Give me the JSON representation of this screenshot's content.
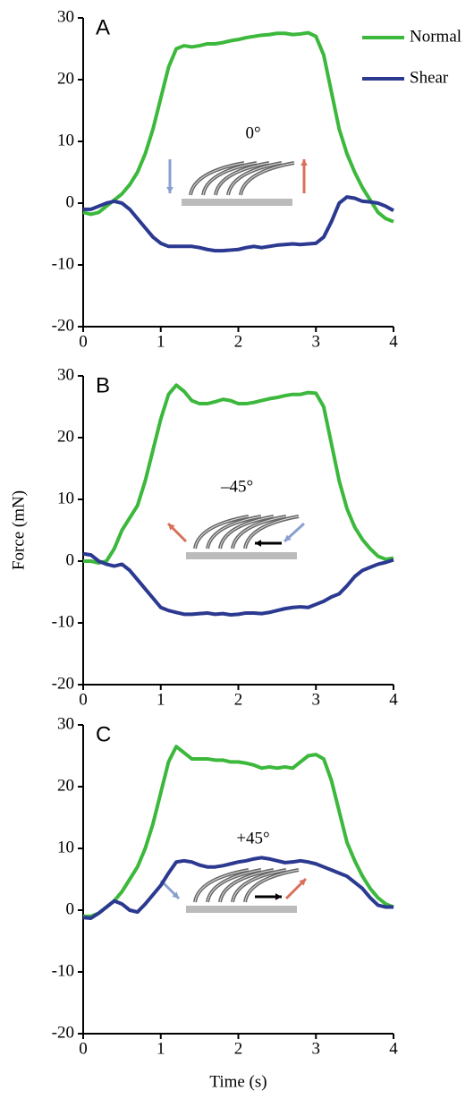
{
  "chart_data": [
    {
      "type": "line",
      "panel": "A",
      "annotation": "0°",
      "legend": "upper right",
      "x": [
        0,
        0.1,
        0.2,
        0.3,
        0.4,
        0.5,
        0.6,
        0.7,
        0.8,
        0.9,
        1.0,
        1.1,
        1.2,
        1.3,
        1.4,
        1.5,
        1.6,
        1.7,
        1.8,
        1.9,
        2.0,
        2.1,
        2.2,
        2.3,
        2.4,
        2.5,
        2.6,
        2.7,
        2.8,
        2.9,
        3.0,
        3.1,
        3.2,
        3.3,
        3.4,
        3.5,
        3.6,
        3.7,
        3.8,
        3.9,
        4.0
      ],
      "series": [
        {
          "name": "Normal",
          "color": "#3cb83c",
          "values": [
            -1.5,
            -1.8,
            -1.5,
            -0.5,
            0.5,
            1.5,
            3,
            5,
            8,
            12,
            17,
            22,
            25,
            25.5,
            25.3,
            25.5,
            25.8,
            25.8,
            26,
            26.3,
            26.5,
            26.8,
            27,
            27.2,
            27.3,
            27.5,
            27.5,
            27.3,
            27.4,
            27.6,
            27,
            24,
            18,
            12,
            8,
            5,
            2.5,
            0.5,
            -1.5,
            -2.5,
            -3
          ]
        },
        {
          "name": "Shear",
          "color": "#2b3990",
          "values": [
            -1,
            -1,
            -0.5,
            0,
            0.3,
            0,
            -1,
            -2.5,
            -4,
            -5.5,
            -6.5,
            -7,
            -7,
            -7,
            -7,
            -7.2,
            -7.5,
            -7.7,
            -7.7,
            -7.6,
            -7.5,
            -7.2,
            -7,
            -7.2,
            -7,
            -6.8,
            -6.7,
            -6.6,
            -6.7,
            -6.6,
            -6.5,
            -5.5,
            -3,
            0,
            1,
            0.8,
            0.3,
            0.2,
            0,
            -0.5,
            -1.2
          ]
        }
      ],
      "xlim": [
        0,
        4
      ],
      "xticks": [
        0,
        1,
        2,
        3,
        4
      ],
      "ylim": [
        -20,
        30
      ],
      "yticks": [
        -20,
        -10,
        0,
        10,
        20,
        30
      ]
    },
    {
      "type": "line",
      "panel": "B",
      "annotation": "–45°",
      "ylabel": "Force (mN)",
      "x": [
        0,
        0.1,
        0.2,
        0.3,
        0.4,
        0.5,
        0.6,
        0.7,
        0.8,
        0.9,
        1.0,
        1.1,
        1.2,
        1.3,
        1.4,
        1.5,
        1.6,
        1.7,
        1.8,
        1.9,
        2.0,
        2.1,
        2.2,
        2.3,
        2.4,
        2.5,
        2.6,
        2.7,
        2.8,
        2.9,
        3.0,
        3.1,
        3.2,
        3.3,
        3.4,
        3.5,
        3.6,
        3.7,
        3.8,
        3.9,
        4.0
      ],
      "series": [
        {
          "name": "Normal",
          "color": "#3cb83c",
          "values": [
            0,
            0,
            -0.3,
            0,
            2,
            5,
            7,
            9,
            13,
            18,
            23,
            27,
            28.5,
            27.5,
            26,
            25.5,
            25.5,
            25.8,
            26.2,
            26,
            25.5,
            25.5,
            25.7,
            26,
            26.3,
            26.5,
            26.8,
            27,
            27,
            27.3,
            27.2,
            25,
            19,
            13,
            8.5,
            5.5,
            3.5,
            2,
            0.8,
            0.3,
            0.5
          ]
        },
        {
          "name": "Shear",
          "color": "#2b3990",
          "values": [
            1.2,
            1,
            0,
            -0.5,
            -0.8,
            -0.5,
            -1.5,
            -3,
            -4.5,
            -6,
            -7.5,
            -8,
            -8.3,
            -8.6,
            -8.6,
            -8.5,
            -8.4,
            -8.6,
            -8.5,
            -8.7,
            -8.6,
            -8.4,
            -8.4,
            -8.5,
            -8.3,
            -8,
            -7.7,
            -7.5,
            -7.4,
            -7.5,
            -7,
            -6.5,
            -5.8,
            -5.3,
            -4,
            -2.5,
            -1.5,
            -1,
            -0.5,
            -0.2,
            0.2
          ]
        }
      ],
      "xlim": [
        0,
        4
      ],
      "xticks": [
        0,
        1,
        2,
        3,
        4
      ],
      "ylim": [
        -20,
        30
      ],
      "yticks": [
        -20,
        -10,
        0,
        10,
        20,
        30
      ]
    },
    {
      "type": "line",
      "panel": "C",
      "annotation": "+45°",
      "xlabel": "Time (s)",
      "x": [
        0,
        0.1,
        0.2,
        0.3,
        0.4,
        0.5,
        0.6,
        0.7,
        0.8,
        0.9,
        1.0,
        1.1,
        1.2,
        1.3,
        1.4,
        1.5,
        1.6,
        1.7,
        1.8,
        1.9,
        2.0,
        2.1,
        2.2,
        2.3,
        2.4,
        2.5,
        2.6,
        2.7,
        2.8,
        2.9,
        3.0,
        3.1,
        3.2,
        3.3,
        3.4,
        3.5,
        3.6,
        3.7,
        3.8,
        3.9,
        4.0
      ],
      "series": [
        {
          "name": "Normal",
          "color": "#3cb83c",
          "values": [
            -1,
            -1,
            -0.5,
            0.5,
            1.5,
            3,
            5,
            7,
            10,
            14,
            19,
            24,
            26.5,
            25.5,
            24.5,
            24.5,
            24.5,
            24.3,
            24.3,
            24,
            24,
            23.8,
            23.5,
            23,
            23.2,
            23,
            23.2,
            23,
            24,
            25,
            25.2,
            24.5,
            21,
            16,
            11,
            8,
            5.5,
            3.5,
            2,
            1,
            0.5
          ]
        },
        {
          "name": "Shear",
          "color": "#2b3990",
          "values": [
            -1.2,
            -1.3,
            -0.5,
            0.5,
            1.5,
            1,
            0,
            -0.3,
            1,
            2.5,
            4,
            6,
            7.8,
            8,
            7.8,
            7.3,
            7,
            7,
            7.2,
            7.5,
            7.8,
            8,
            8.3,
            8.5,
            8.3,
            8,
            7.7,
            7.8,
            8,
            7.8,
            7.5,
            7,
            6.5,
            6,
            5.5,
            4.5,
            3.5,
            2,
            0.8,
            0.5,
            0.5
          ]
        }
      ],
      "xlim": [
        0,
        4
      ],
      "xticks": [
        0,
        1,
        2,
        3,
        4
      ],
      "ylim": [
        -20,
        30
      ],
      "yticks": [
        -20,
        -10,
        0,
        10,
        20,
        30
      ]
    }
  ]
}
